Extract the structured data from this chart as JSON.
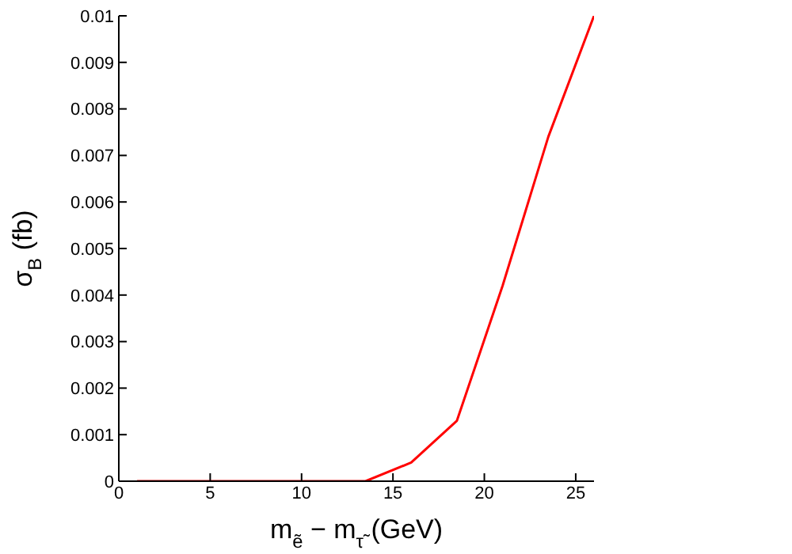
{
  "chart_data": {
    "type": "line",
    "xlabel": "m$_{ẽ}$ − m$_{τ̃}$ (GeV)",
    "ylabel": "σ$_{B}$ (fb)",
    "x": [
      1,
      13.5,
      16,
      18.5,
      21,
      23.5,
      26
    ],
    "series": [
      {
        "color": "#ff0000",
        "values": [
          0,
          0,
          0.0004,
          0.0013,
          0.0042,
          0.0074,
          0.01
        ]
      }
    ],
    "xlim": [
      0,
      26
    ],
    "xticks": [
      0,
      5,
      10,
      15,
      20,
      25
    ],
    "ylim": [
      0,
      0.01
    ],
    "yticks": [
      0,
      0.001,
      0.002,
      0.003,
      0.004,
      0.005,
      0.006,
      0.007,
      0.008,
      0.009,
      0.01
    ],
    "grid": false,
    "legend": false,
    "marker": "none",
    "line_style": "solid"
  }
}
